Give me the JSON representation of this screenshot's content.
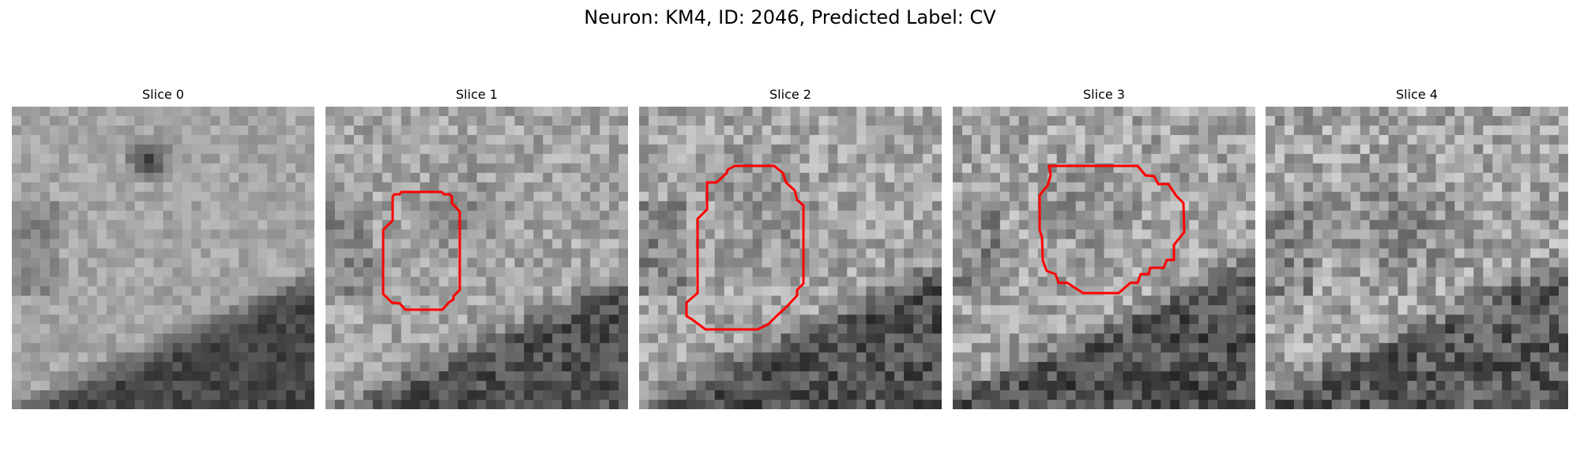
{
  "figure": {
    "title": "Neuron: KM4, ID: 2046, Predicted Label: CV"
  },
  "panels": [
    {
      "title": "Slice 0",
      "has_contour": false
    },
    {
      "title": "Slice 1",
      "has_contour": true
    },
    {
      "title": "Slice 2",
      "has_contour": true
    },
    {
      "title": "Slice 3",
      "has_contour": true
    },
    {
      "title": "Slice 4",
      "has_contour": false
    }
  ],
  "colors": {
    "contour": "#ff0000",
    "colormap": "grayscale"
  }
}
